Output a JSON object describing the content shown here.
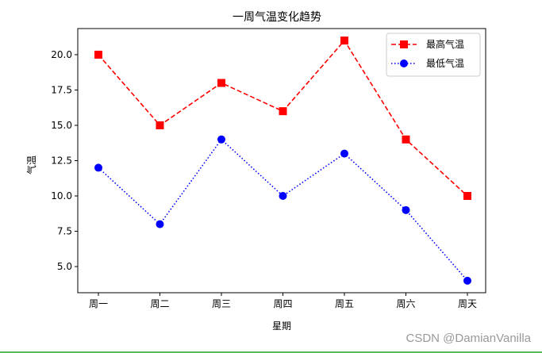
{
  "chart_data": {
    "type": "line",
    "title": "一周气温变化趋势",
    "xlabel": "星期",
    "ylabel": "气温",
    "categories": [
      "周一",
      "周二",
      "周三",
      "周四",
      "周五",
      "周六",
      "周天"
    ],
    "series": [
      {
        "name": "最高气温",
        "values": [
          20,
          15,
          18,
          16,
          21,
          14,
          10
        ],
        "color": "#ff0000",
        "linestyle": "dashed",
        "marker": "square"
      },
      {
        "name": "最低气温",
        "values": [
          12,
          8,
          14,
          10,
          13,
          9,
          4
        ],
        "color": "#0000ff",
        "linestyle": "dotted",
        "marker": "circle"
      }
    ],
    "yticks": [
      5.0,
      7.5,
      10.0,
      12.5,
      15.0,
      17.5,
      20.0
    ],
    "ytick_labels": [
      "5.0",
      "7.5",
      "10.0",
      "12.5",
      "15.0",
      "17.5",
      "20.0"
    ],
    "ylim": [
      3.15,
      21.85
    ],
    "grid": false,
    "legend_position": "top-right"
  },
  "watermark": "CSDN @DamianVanilla",
  "colors": {
    "bottom_rule": "#5cb85c"
  }
}
